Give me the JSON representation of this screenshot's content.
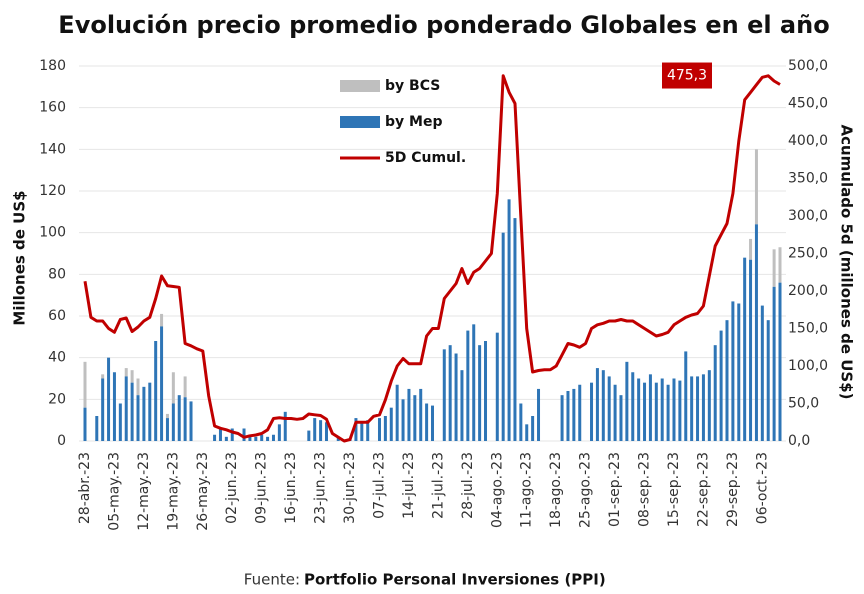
{
  "chart_data": {
    "type": "bar-line",
    "title": "Evolución precio promedio ponderado Globales en el año",
    "y_label": "Millones de US$",
    "y2_label": "Acumulado 5d (millones de US$)",
    "source_prefix": "Fuente:",
    "source": "Portfolio Personal Inversiones (PPI)",
    "categories": [
      "28-abr.-23",
      null,
      null,
      null,
      null,
      "05-may.-23",
      null,
      null,
      null,
      null,
      "12-may.-23",
      null,
      null,
      null,
      null,
      "19-may.-23",
      null,
      null,
      null,
      null,
      "26-may.-23",
      null,
      null,
      null,
      null,
      "02-jun.-23",
      null,
      null,
      null,
      null,
      "09-jun.-23",
      null,
      null,
      null,
      null,
      "16-jun.-23",
      null,
      null,
      null,
      null,
      "23-jun.-23",
      null,
      null,
      null,
      null,
      "30-jun.-23",
      null,
      null,
      null,
      null,
      "07-jul.-23",
      null,
      null,
      null,
      null,
      "14-jul.-23",
      null,
      null,
      null,
      null,
      "21-jul.-23",
      null,
      null,
      null,
      null,
      "28-jul.-23",
      null,
      null,
      null,
      null,
      "04-ago.-23",
      null,
      null,
      null,
      null,
      "11-ago.-23",
      null,
      null,
      null,
      null,
      "18-ago.-23",
      null,
      null,
      null,
      null,
      "25-ago.-23",
      null,
      null,
      null,
      null,
      "01-sep.-23",
      null,
      null,
      null,
      null,
      "08-sep.-23",
      null,
      null,
      null,
      null,
      "15-sep.-23",
      null,
      null,
      null,
      null,
      "22-sep.-23",
      null,
      null,
      null,
      null,
      "29-sep.-23",
      null,
      null,
      null,
      null,
      "06-oct.-23",
      null,
      null,
      null
    ],
    "series": [
      {
        "name": "by BCS",
        "color": "#bfbfbf",
        "kind": "bar",
        "stack_on": 1,
        "values": [
          22,
          0,
          0,
          2,
          0,
          0,
          0,
          4,
          6,
          8,
          0,
          0,
          0,
          6,
          2,
          15,
          0,
          10,
          0,
          0,
          0,
          0,
          0,
          0,
          0,
          0,
          0,
          0,
          0,
          0,
          0,
          0,
          0,
          0,
          0,
          0,
          0,
          0,
          0,
          0,
          0,
          0,
          0,
          0,
          0,
          0,
          0,
          0,
          0,
          0,
          0,
          0,
          0,
          0,
          0,
          0,
          0,
          0,
          0,
          0,
          0,
          0,
          0,
          0,
          0,
          0,
          0,
          0,
          0,
          0,
          0,
          0,
          0,
          0,
          0,
          0,
          0,
          0,
          0,
          0,
          0,
          0,
          0,
          0,
          0,
          0,
          0,
          0,
          0,
          0,
          0,
          0,
          0,
          0,
          0,
          0,
          0,
          0,
          0,
          0,
          0,
          0,
          0,
          0,
          0,
          0,
          0,
          0,
          0,
          0,
          0,
          0,
          0,
          10,
          36,
          0,
          0,
          18,
          17
        ]
      },
      {
        "name": "by Mep",
        "color": "#2e75b6",
        "kind": "bar",
        "values": [
          16,
          0,
          12,
          30,
          40,
          33,
          18,
          31,
          28,
          22,
          26,
          28,
          48,
          55,
          11,
          18,
          22,
          21,
          19,
          0,
          0,
          0,
          3,
          6,
          2,
          6,
          0,
          6,
          3,
          2,
          3,
          2,
          3,
          8,
          14,
          0,
          0,
          0,
          5,
          11,
          10,
          9,
          0,
          2,
          0,
          1,
          11,
          9,
          10,
          0,
          11,
          12,
          16,
          27,
          20,
          25,
          22,
          25,
          18,
          17,
          0,
          44,
          46,
          42,
          34,
          53,
          56,
          46,
          48,
          0,
          52,
          100,
          116,
          107,
          18,
          8,
          12,
          25,
          0,
          0,
          0,
          22,
          24,
          25,
          27,
          0,
          28,
          35,
          34,
          31,
          27,
          22,
          38,
          33,
          30,
          28,
          32,
          28,
          30,
          27,
          30,
          29,
          43,
          31,
          31,
          32,
          34,
          46,
          53,
          58,
          67,
          66,
          88,
          87,
          104,
          65,
          58,
          74,
          76
        ]
      },
      {
        "name": "5D Cumul.",
        "color": "#c00000",
        "kind": "line",
        "axis": "y2",
        "values": [
          213,
          165,
          160,
          160,
          150,
          145,
          162,
          164,
          146,
          152,
          160,
          165,
          190,
          220,
          207,
          206,
          205,
          130,
          127,
          123,
          120,
          60,
          20,
          17,
          15,
          12,
          10,
          5,
          7,
          8,
          10,
          15,
          30,
          31,
          30,
          30,
          29,
          30,
          36,
          35,
          34,
          29,
          10,
          5,
          0,
          2,
          25,
          25,
          25,
          33,
          35,
          55,
          80,
          100,
          110,
          103,
          103,
          103,
          140,
          150,
          150,
          190,
          200,
          210,
          230,
          210,
          225,
          230,
          240,
          250,
          330,
          487,
          465,
          450,
          300,
          150,
          92,
          94,
          95,
          95,
          100,
          115,
          130,
          128,
          125,
          130,
          150,
          155,
          157,
          160,
          160,
          162,
          160,
          160,
          155,
          150,
          145,
          140,
          142,
          145,
          155,
          160,
          165,
          168,
          170,
          180,
          220,
          260,
          275,
          290,
          330,
          400,
          455,
          465,
          475,
          485,
          487,
          480,
          475.3
        ],
        "value_labels": [
          null,
          null,
          null,
          null,
          null,
          null,
          null,
          null,
          null,
          null,
          null,
          null,
          null,
          null,
          null,
          null,
          null,
          null,
          null,
          null,
          null,
          null,
          null,
          null,
          null,
          null,
          null,
          null,
          null,
          null,
          null,
          null,
          null,
          null,
          null,
          null,
          null,
          null,
          null,
          null,
          null,
          null,
          null,
          null,
          null,
          null,
          null,
          null,
          null,
          null,
          null,
          null,
          null,
          null,
          null,
          null,
          null,
          null,
          null,
          null,
          null,
          null,
          null,
          null,
          null,
          null,
          null,
          null,
          null,
          null,
          null,
          null,
          null,
          null,
          null,
          null,
          null,
          null,
          null,
          null,
          null,
          null,
          null,
          null,
          null,
          null,
          null,
          null,
          null,
          null,
          null,
          null,
          null,
          null,
          null,
          null,
          null,
          null,
          null,
          null,
          null,
          null,
          null,
          null,
          null,
          null,
          null,
          null,
          null,
          null,
          null,
          null,
          null,
          null,
          null,
          null,
          null,
          null,
          "475,3"
        ]
      }
    ],
    "ylim": [
      0,
      180
    ],
    "yticks": [
      0,
      20,
      40,
      60,
      80,
      100,
      120,
      140,
      160,
      180
    ],
    "y2lim": [
      0,
      500
    ],
    "y2ticks": [
      {
        "value": 0,
        "label": "0,0"
      },
      {
        "value": 50,
        "label": "50,0"
      },
      {
        "value": 100,
        "label": "100,0"
      },
      {
        "value": 150,
        "label": "150,0"
      },
      {
        "value": 200,
        "label": "200,0"
      },
      {
        "value": 250,
        "label": "250,0"
      },
      {
        "value": 300,
        "label": "300,0"
      },
      {
        "value": 350,
        "label": "350,0"
      },
      {
        "value": 400,
        "label": "400,0"
      },
      {
        "value": 450,
        "label": "450,0"
      },
      {
        "value": 500,
        "label": "500,0"
      }
    ],
    "grid": true,
    "legend": "top-center"
  }
}
